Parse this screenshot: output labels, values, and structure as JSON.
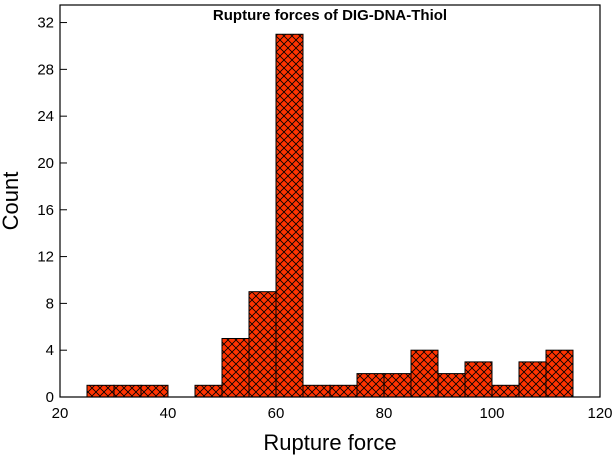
{
  "chart_data": {
    "type": "histogram",
    "title": "Rupture forces of DIG-DNA-Thiol",
    "x_label": "Rupture force",
    "y_label": "Count",
    "bins": [
      25,
      30,
      35,
      40,
      45,
      50,
      55,
      60,
      65,
      70,
      75,
      80,
      85,
      90,
      95,
      100,
      105,
      110,
      115
    ],
    "counts": [
      1,
      1,
      1,
      0,
      1,
      5,
      9,
      31,
      1,
      1,
      2,
      2,
      4,
      2,
      3,
      1,
      3,
      4
    ],
    "color": "#ff3300",
    "xlim": [
      20,
      120
    ],
    "xticks": [
      20,
      40,
      60,
      80,
      100,
      120
    ],
    "ylim": [
      0,
      33.5
    ],
    "yticks": [
      0,
      4,
      8,
      12,
      16,
      20,
      24,
      28,
      32
    ]
  }
}
